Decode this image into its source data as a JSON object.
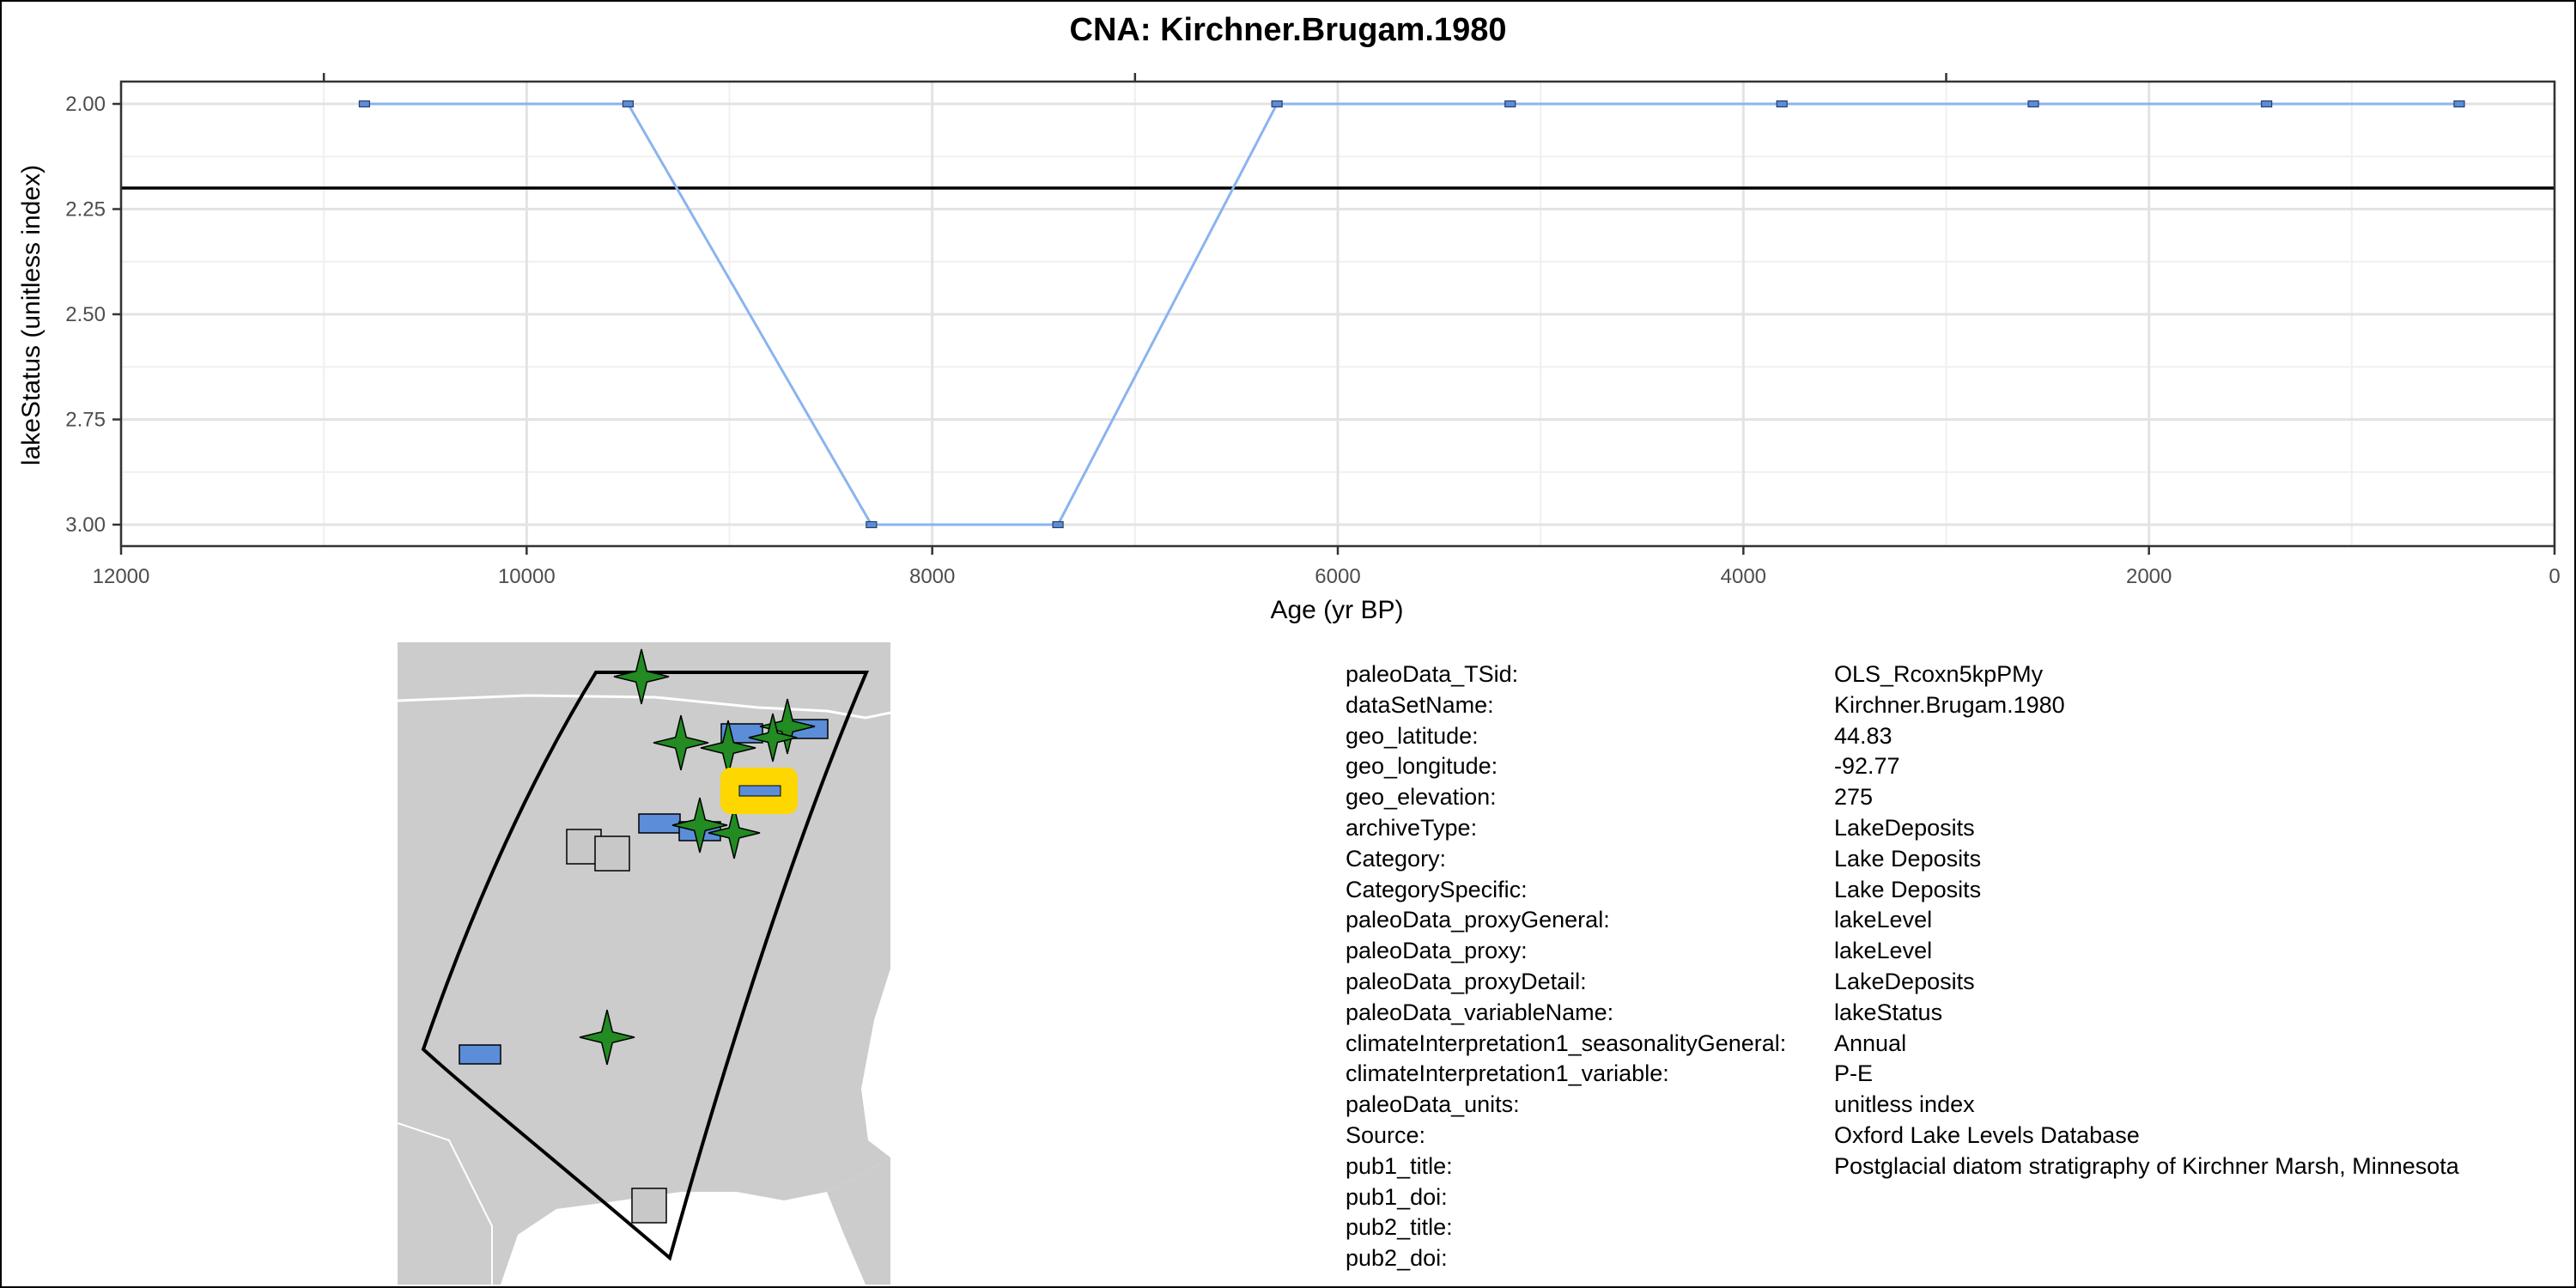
{
  "chart_data": {
    "type": "line",
    "title": "CNA: Kirchner.Brugam.1980",
    "xlabel": "Age (yr BP)",
    "ylabel": "lakeStatus (unitless index)",
    "x_reversed": true,
    "y_reversed": true,
    "xlim": [
      12000,
      0
    ],
    "ylim": [
      2.0,
      3.0
    ],
    "x_ticks": [
      12000,
      10000,
      8000,
      6000,
      4000,
      2000,
      0
    ],
    "x_tick_labels": [
      "12000",
      "10000",
      "8000",
      "6000",
      "4000",
      "2000",
      "0"
    ],
    "y_ticks": [
      2.0,
      2.25,
      2.5,
      2.75,
      3.0
    ],
    "y_tick_labels": [
      "2.00",
      "2.25",
      "2.50",
      "2.75",
      "3.00"
    ],
    "reference_line_y": 2.2,
    "grid": true,
    "series": [
      {
        "x": [
          10800,
          9500,
          8300,
          7380,
          6300,
          5150,
          3810,
          2570,
          1420,
          470
        ],
        "y": [
          2,
          2,
          3,
          3,
          2,
          2,
          2,
          2,
          2,
          2
        ]
      }
    ],
    "colors": {
      "line": "#8ab4f0",
      "marker": "#5b8dd9",
      "reference": "#000000"
    }
  },
  "map": {
    "colors": {
      "ocean": "#ffffff",
      "land": "#cccccc",
      "boundary": "#000000",
      "star": "#228B22",
      "square": "#c8c8c8",
      "rect": "#5b8dd9",
      "highlight": "#ffd700"
    },
    "marker_kinds": [
      "star",
      "square",
      "rect",
      "highlight"
    ]
  },
  "metadata": [
    {
      "key": "paleoData_TSid:",
      "value": "OLS_Rcoxn5kpPMy"
    },
    {
      "key": "dataSetName:",
      "value": "Kirchner.Brugam.1980"
    },
    {
      "key": "geo_latitude:",
      "value": "44.83"
    },
    {
      "key": "geo_longitude:",
      "value": "-92.77"
    },
    {
      "key": "geo_elevation:",
      "value": "275"
    },
    {
      "key": "archiveType:",
      "value": "LakeDeposits"
    },
    {
      "key": "Category:",
      "value": "Lake Deposits"
    },
    {
      "key": "CategorySpecific:",
      "value": "Lake Deposits"
    },
    {
      "key": "paleoData_proxyGeneral:",
      "value": "lakeLevel"
    },
    {
      "key": "paleoData_proxy:",
      "value": "lakeLevel"
    },
    {
      "key": "paleoData_proxyDetail:",
      "value": "LakeDeposits"
    },
    {
      "key": "paleoData_variableName:",
      "value": "lakeStatus"
    },
    {
      "key": "climateInterpretation1_seasonalityGeneral:",
      "value": "Annual"
    },
    {
      "key": "climateInterpretation1_variable:",
      "value": "P-E"
    },
    {
      "key": "paleoData_units:",
      "value": "unitless index"
    },
    {
      "key": "Source:",
      "value": "Oxford Lake Levels Database"
    },
    {
      "key": "pub1_title:",
      "value": "Postglacial diatom stratigraphy of Kirchner Marsh, Minnesota"
    },
    {
      "key": "pub1_doi:",
      "value": ""
    },
    {
      "key": "pub2_title:",
      "value": ""
    },
    {
      "key": "pub2_doi:",
      "value": ""
    }
  ]
}
